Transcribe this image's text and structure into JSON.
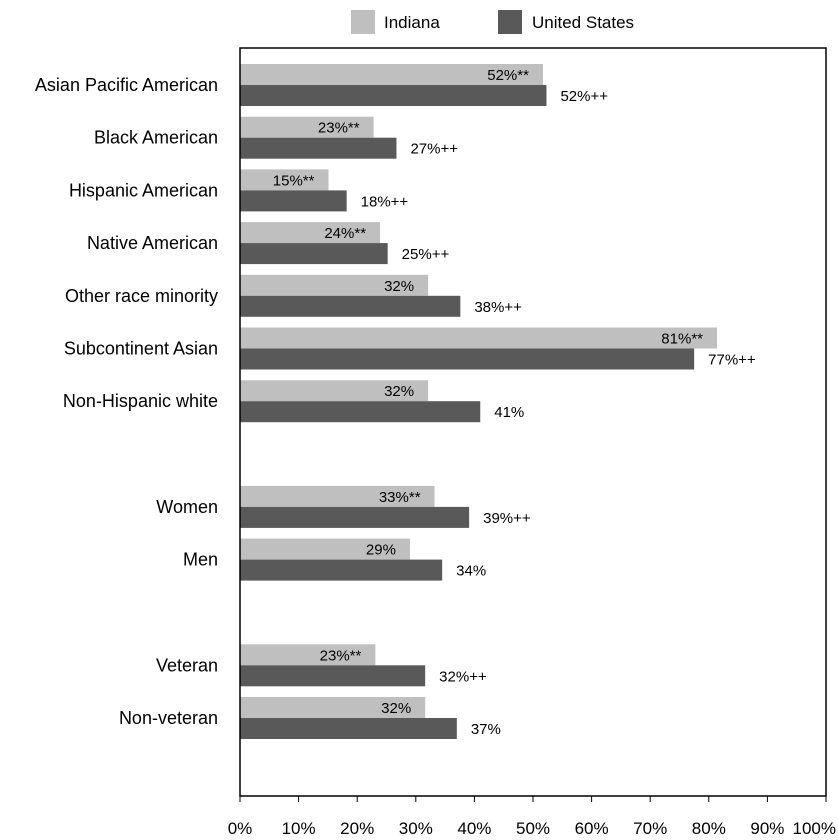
{
  "chart_data": {
    "type": "bar",
    "orientation": "horizontal",
    "legend_placement": "top",
    "grid": false,
    "xlim": [
      0,
      100
    ],
    "xticks": [
      "0%",
      "10%",
      "20%",
      "30%",
      "40%",
      "50%",
      "60%",
      "70%",
      "80%",
      "90%",
      "100%"
    ],
    "categories": [
      "Asian Pacific American",
      "Black American",
      "Hispanic American",
      "Native American",
      "Other race minority",
      "Subcontinent Asian",
      "Non-Hispanic white",
      "Women",
      "Men",
      "Veteran",
      "Non-veteran"
    ],
    "groups": [
      [
        "Asian Pacific American",
        "Black American",
        "Hispanic American",
        "Native American",
        "Other race minority",
        "Subcontinent Asian",
        "Non-Hispanic white"
      ],
      [
        "Women",
        "Men"
      ],
      [
        "Veteran",
        "Non-veteran"
      ]
    ],
    "series": [
      {
        "name": "Indiana",
        "color": "#bfbfbf",
        "values": [
          51.7,
          22.8,
          15.1,
          23.9,
          32.1,
          81.4,
          32.1,
          33.2,
          29.0,
          23.1,
          31.6
        ],
        "labels": [
          "52%**",
          "23%**",
          "15%**",
          "24%**",
          "32%",
          "81%**",
          "32%",
          "33%**",
          "29%",
          "23%**",
          "32%"
        ]
      },
      {
        "name": "United States",
        "color": "#595959",
        "values": [
          52.3,
          26.7,
          18.2,
          25.2,
          37.6,
          77.5,
          41.0,
          39.1,
          34.5,
          31.6,
          37.0
        ],
        "labels": [
          "52%++",
          "27%++",
          "18%++",
          "25%++",
          "38%++",
          "77%++",
          "41%",
          "39%++",
          "34%",
          "32%++",
          "37%"
        ]
      }
    ]
  }
}
